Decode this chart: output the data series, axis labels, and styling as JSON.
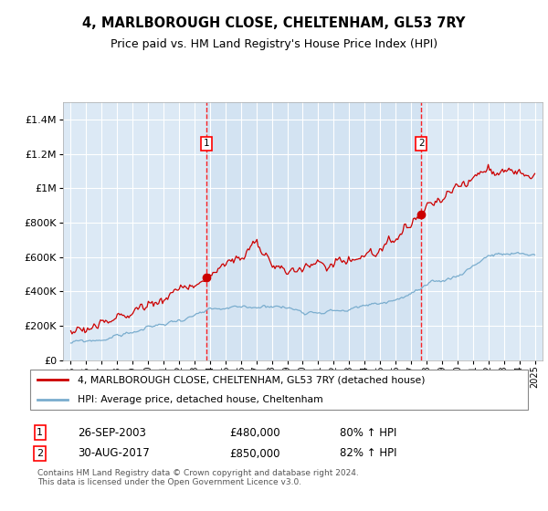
{
  "title": "4, MARLBOROUGH CLOSE, CHELTENHAM, GL53 7RY",
  "subtitle": "Price paid vs. HM Land Registry's House Price Index (HPI)",
  "background_color": "#dce9f5",
  "grid_color": "#ffffff",
  "red_line_color": "#cc0000",
  "blue_line_color": "#7aadce",
  "shade_color": "#ccdff0",
  "annotation1": {
    "x_year": 2003.75,
    "label": "1",
    "date": "26-SEP-2003",
    "price": "£480,000",
    "hpi": "80% ↑ HPI"
  },
  "annotation2": {
    "x_year": 2017.66,
    "label": "2",
    "date": "30-AUG-2017",
    "price": "£850,000",
    "hpi": "82% ↑ HPI"
  },
  "legend_line1": "4, MARLBOROUGH CLOSE, CHELTENHAM, GL53 7RY (detached house)",
  "legend_line2": "HPI: Average price, detached house, Cheltenham",
  "footer": "Contains HM Land Registry data © Crown copyright and database right 2024.\nThis data is licensed under the Open Government Licence v3.0.",
  "xlim": [
    1994.5,
    2025.5
  ],
  "ylim": [
    0,
    1500000
  ],
  "yticks": [
    0,
    200000,
    400000,
    600000,
    800000,
    1000000,
    1200000,
    1400000
  ],
  "xticks": [
    1995,
    1996,
    1997,
    1998,
    1999,
    2000,
    2001,
    2002,
    2003,
    2004,
    2005,
    2006,
    2007,
    2008,
    2009,
    2010,
    2011,
    2012,
    2013,
    2014,
    2015,
    2016,
    2017,
    2018,
    2019,
    2020,
    2021,
    2022,
    2023,
    2024,
    2025
  ]
}
